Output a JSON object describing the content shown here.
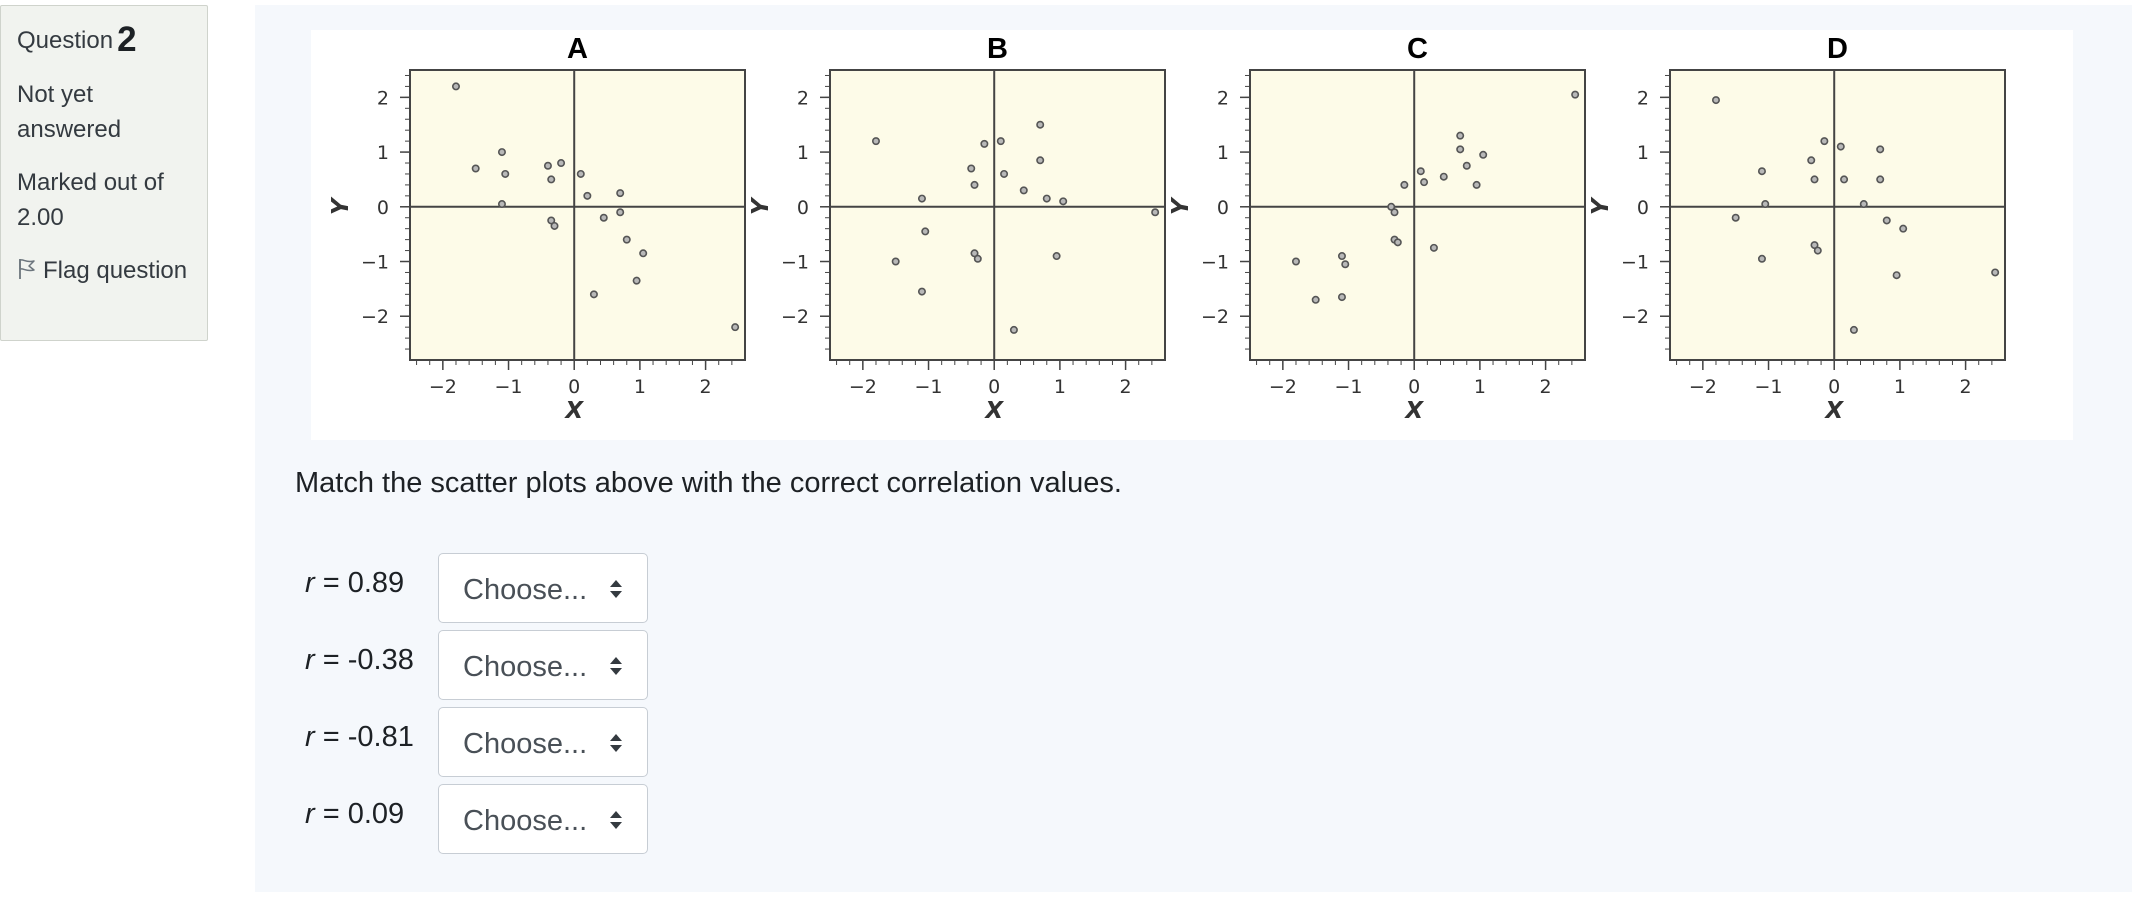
{
  "info": {
    "question_label": "Question",
    "question_number": "2",
    "state": "Not yet answered",
    "grade": "Marked out of 2.00",
    "flag_label": "Flag question"
  },
  "question": {
    "text": "Match the scatter plots above with the correct correlation values.",
    "stems": [
      {
        "variable": "r",
        "value": " = 0.89",
        "selected": "Choose..."
      },
      {
        "variable": "r",
        "value": " = -0.38",
        "selected": "Choose..."
      },
      {
        "variable": "r",
        "value": " = -0.81",
        "selected": "Choose..."
      },
      {
        "variable": "r",
        "value": " = 0.09",
        "selected": "Choose..."
      }
    ]
  },
  "chart_data": [
    {
      "type": "scatter",
      "title": "A",
      "xlabel": "X",
      "ylabel": "Y",
      "xlim": [
        -2.5,
        2.6
      ],
      "ylim": [
        -2.8,
        2.5
      ],
      "xticks": [
        -2,
        -1,
        0,
        1,
        2
      ],
      "yticks": [
        -2,
        -1,
        0,
        1,
        2
      ],
      "points": [
        [
          -1.8,
          2.2
        ],
        [
          -1.5,
          0.7
        ],
        [
          -1.1,
          1.0
        ],
        [
          -1.05,
          0.6
        ],
        [
          -1.1,
          0.05
        ],
        [
          -0.4,
          0.75
        ],
        [
          -0.35,
          0.5
        ],
        [
          -0.2,
          0.8
        ],
        [
          -0.35,
          -0.25
        ],
        [
          -0.3,
          -0.35
        ],
        [
          0.1,
          0.6
        ],
        [
          0.2,
          0.2
        ],
        [
          0.45,
          -0.2
        ],
        [
          0.7,
          0.25
        ],
        [
          0.7,
          -0.1
        ],
        [
          0.8,
          -0.6
        ],
        [
          0.95,
          -1.35
        ],
        [
          1.05,
          -0.85
        ],
        [
          0.3,
          -1.6
        ],
        [
          2.45,
          -2.2
        ]
      ]
    },
    {
      "type": "scatter",
      "title": "B",
      "xlabel": "X",
      "ylabel": "Y",
      "xlim": [
        -2.5,
        2.6
      ],
      "ylim": [
        -2.8,
        2.5
      ],
      "xticks": [
        -2,
        -1,
        0,
        1,
        2
      ],
      "yticks": [
        -2,
        -1,
        0,
        1,
        2
      ],
      "points": [
        [
          -1.8,
          1.2
        ],
        [
          -1.5,
          -1.0
        ],
        [
          -1.1,
          0.15
        ],
        [
          -1.05,
          -0.45
        ],
        [
          -1.1,
          -1.55
        ],
        [
          -0.35,
          0.7
        ],
        [
          -0.3,
          0.4
        ],
        [
          -0.3,
          -0.85
        ],
        [
          -0.25,
          -0.95
        ],
        [
          -0.15,
          1.15
        ],
        [
          0.1,
          1.2
        ],
        [
          0.15,
          0.6
        ],
        [
          0.45,
          0.3
        ],
        [
          0.7,
          1.5
        ],
        [
          0.7,
          0.85
        ],
        [
          0.8,
          0.15
        ],
        [
          0.95,
          -0.9
        ],
        [
          1.05,
          0.1
        ],
        [
          0.3,
          -2.25
        ],
        [
          2.45,
          -0.1
        ]
      ]
    },
    {
      "type": "scatter",
      "title": "C",
      "xlabel": "X",
      "ylabel": "Y",
      "xlim": [
        -2.5,
        2.6
      ],
      "ylim": [
        -2.8,
        2.5
      ],
      "xticks": [
        -2,
        -1,
        0,
        1,
        2
      ],
      "yticks": [
        -2,
        -1,
        0,
        1,
        2
      ],
      "points": [
        [
          -1.8,
          -1.0
        ],
        [
          -1.5,
          -1.7
        ],
        [
          -1.1,
          -0.9
        ],
        [
          -1.05,
          -1.05
        ],
        [
          -1.1,
          -1.65
        ],
        [
          -0.35,
          0.0
        ],
        [
          -0.3,
          -0.1
        ],
        [
          -0.3,
          -0.6
        ],
        [
          -0.25,
          -0.65
        ],
        [
          -0.15,
          0.4
        ],
        [
          0.1,
          0.65
        ],
        [
          0.15,
          0.45
        ],
        [
          0.45,
          0.55
        ],
        [
          0.7,
          1.3
        ],
        [
          0.7,
          1.05
        ],
        [
          0.8,
          0.75
        ],
        [
          0.95,
          0.4
        ],
        [
          1.05,
          0.95
        ],
        [
          0.3,
          -0.75
        ],
        [
          2.45,
          2.05
        ]
      ]
    },
    {
      "type": "scatter",
      "title": "D",
      "xlabel": "X",
      "ylabel": "Y",
      "xlim": [
        -2.5,
        2.6
      ],
      "ylim": [
        -2.8,
        2.5
      ],
      "xticks": [
        -2,
        -1,
        0,
        1,
        2
      ],
      "yticks": [
        -2,
        -1,
        0,
        1,
        2
      ],
      "points": [
        [
          -1.8,
          1.95
        ],
        [
          -1.5,
          -0.2
        ],
        [
          -1.1,
          0.65
        ],
        [
          -1.05,
          0.05
        ],
        [
          -1.1,
          -0.95
        ],
        [
          -0.35,
          0.85
        ],
        [
          -0.3,
          0.5
        ],
        [
          -0.3,
          -0.7
        ],
        [
          -0.25,
          -0.8
        ],
        [
          -0.15,
          1.2
        ],
        [
          0.1,
          1.1
        ],
        [
          0.15,
          0.5
        ],
        [
          0.45,
          0.05
        ],
        [
          0.7,
          1.05
        ],
        [
          0.7,
          0.5
        ],
        [
          0.8,
          -0.25
        ],
        [
          0.95,
          -1.25
        ],
        [
          1.05,
          -0.4
        ],
        [
          0.3,
          -2.25
        ],
        [
          2.45,
          -1.2
        ]
      ]
    }
  ],
  "colors": {
    "plot_background": "#fdfbe8",
    "marker": "#555555",
    "axis": "#444444"
  },
  "icons": {
    "flag": "flag-outline-icon",
    "select_caret": "sort-caret-icon"
  }
}
